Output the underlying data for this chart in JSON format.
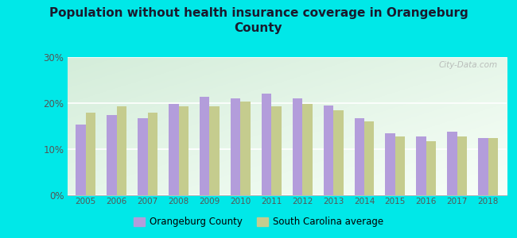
{
  "title": "Population without health insurance coverage in Orangeburg\nCounty",
  "years": [
    2005,
    2006,
    2007,
    2008,
    2009,
    2010,
    2011,
    2012,
    2013,
    2014,
    2015,
    2016,
    2017,
    2018
  ],
  "orangeburg": [
    15.3,
    17.5,
    16.7,
    19.8,
    21.3,
    21.0,
    22.0,
    21.0,
    19.5,
    16.8,
    13.4,
    12.8,
    13.8,
    12.4
  ],
  "sc_avg": [
    18.0,
    19.3,
    18.0,
    19.3,
    19.3,
    20.3,
    19.3,
    19.8,
    18.5,
    16.0,
    12.7,
    11.8,
    12.7,
    12.5
  ],
  "orangeburg_color": "#b39ddb",
  "sc_avg_color": "#c5cc8e",
  "bg_color": "#00e8e8",
  "chart_bg_topleft": "#d4edda",
  "chart_bg_bottomright": "#f8fff8",
  "ylim": [
    0,
    30
  ],
  "yticks": [
    0,
    10,
    20,
    30
  ],
  "ytick_labels": [
    "0%",
    "10%",
    "20%",
    "30%"
  ],
  "legend_orangeburg": "Orangeburg County",
  "legend_sc": "South Carolina average",
  "bar_width": 0.32,
  "title_color": "#1a1a2e",
  "tick_color": "#555555"
}
